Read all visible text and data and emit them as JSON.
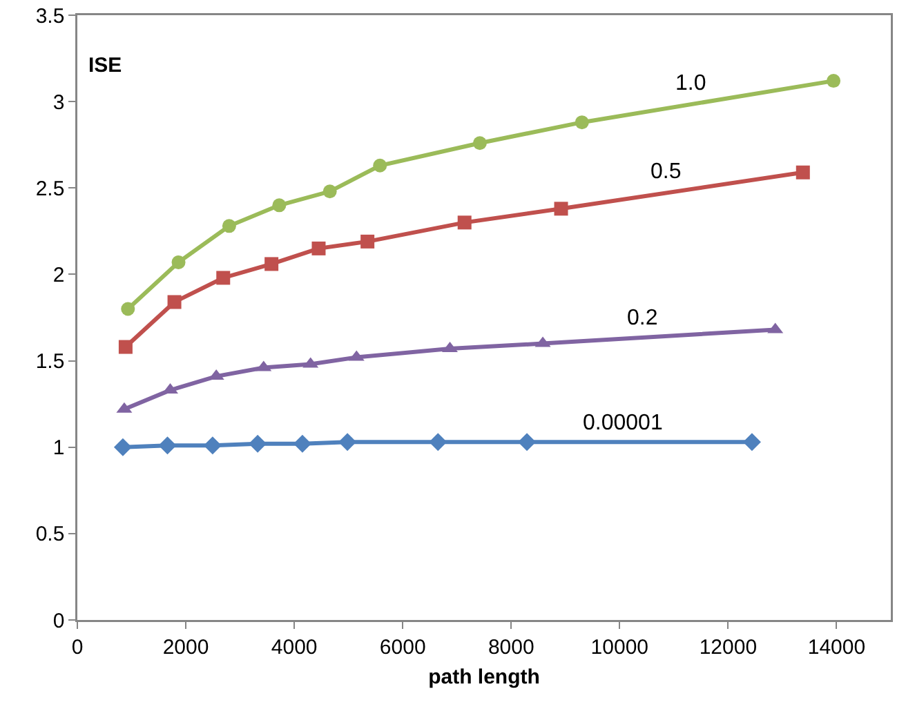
{
  "chart_data": {
    "type": "line",
    "xlabel": "path length",
    "ylabel": "ISE",
    "xlim": [
      0,
      15000
    ],
    "xticks": [
      0,
      2000,
      4000,
      6000,
      8000,
      10000,
      12000,
      14000
    ],
    "ylim": [
      0,
      3.5
    ],
    "yticks": [
      0,
      0.5,
      1,
      1.5,
      2,
      2.5,
      3,
      3.5
    ],
    "grid": false,
    "legend": false,
    "line_style": "solid",
    "series": [
      {
        "name": "1.0",
        "color": "#9bbb59",
        "marker": "circle",
        "x": [
          933,
          1866,
          2800,
          3723,
          4656,
          5580,
          7422,
          9305,
          13944
        ],
        "values": [
          1.8,
          2.07,
          2.28,
          2.4,
          2.48,
          2.63,
          2.76,
          2.88,
          3.12
        ]
      },
      {
        "name": "0.5",
        "color": "#c0504d",
        "marker": "square",
        "x": [
          890,
          1790,
          2690,
          3580,
          4450,
          5350,
          7140,
          8920,
          13380
        ],
        "values": [
          1.58,
          1.84,
          1.98,
          2.06,
          2.15,
          2.19,
          2.3,
          2.38,
          2.59
        ]
      },
      {
        "name": "0.2",
        "color": "#8064a2",
        "marker": "triangle",
        "x": [
          865,
          1713,
          2562,
          3435,
          4300,
          5148,
          6870,
          8583,
          12870
        ],
        "values": [
          1.22,
          1.33,
          1.41,
          1.46,
          1.48,
          1.52,
          1.57,
          1.6,
          1.68
        ]
      },
      {
        "name": "0.00001",
        "color": "#4f81bd",
        "marker": "diamond",
        "x": [
          840,
          1662,
          2494,
          3325,
          4150,
          4980,
          6650,
          8290,
          12440
        ],
        "values": [
          1.0,
          1.01,
          1.01,
          1.02,
          1.02,
          1.03,
          1.03,
          1.03,
          1.03
        ]
      }
    ]
  }
}
